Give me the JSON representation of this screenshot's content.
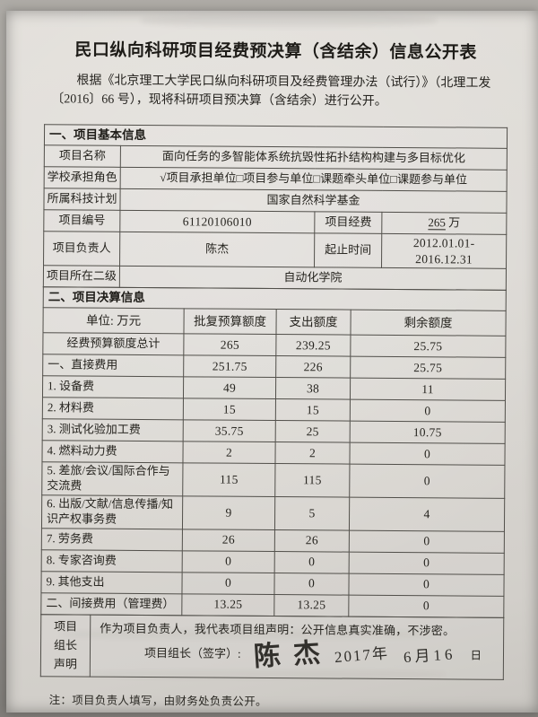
{
  "doc": {
    "title": "民口纵向科研项目经费预决算（含结余）信息公开表",
    "intro": "根据《北京理工大学民口纵向科研项目及经费管理办法（试行）》（北理工发〔2016〕66 号），现将科研项目预决算（含结余）进行公开。",
    "footnote": "注：项目负责人填写，由财务处负责公开。"
  },
  "basic_info": {
    "section_title": "一、项目基本信息",
    "project_name": {
      "label": "项目名称",
      "value": "面向任务的多智能体系统抗毁性拓扑结构构建与多目标优化"
    },
    "school_role": {
      "label": "学校承担角色",
      "value": "√项目承担单位□项目参与单位□课题牵头单位□课题参与单位"
    },
    "program": {
      "label": "所属科技计划",
      "value": "国家自然科学基金"
    },
    "project_no": {
      "label": "项目编号",
      "value": "61120106010"
    },
    "budget": {
      "label": "项目经费",
      "value": "265",
      "unit": "万"
    },
    "pi": {
      "label": "项目负责人",
      "value": "陈杰"
    },
    "period": {
      "label": "起止时间",
      "value": "2012.01.01- 2016.12.31"
    },
    "dept": {
      "label": "项目所在二级",
      "value": "自动化学院"
    }
  },
  "settlement": {
    "section_title": "二、项目决算信息",
    "columns": [
      "单位: 万元",
      "批复预算额度",
      "支出额度",
      "剩余额度"
    ],
    "rows": [
      {
        "label": "经费预算额度总计",
        "budget": "265",
        "spent": "239.25",
        "remain": "25.75",
        "label_align": "center"
      },
      {
        "label": "一、直接费用",
        "budget": "251.75",
        "spent": "226",
        "remain": "25.75"
      },
      {
        "label": "1. 设备费",
        "budget": "49",
        "spent": "38",
        "remain": "11"
      },
      {
        "label": "2. 材料费",
        "budget": "15",
        "spent": "15",
        "remain": "0"
      },
      {
        "label": "3. 测试化验加工费",
        "budget": "35.75",
        "spent": "25",
        "remain": "10.75"
      },
      {
        "label": "4. 燃料动力费",
        "budget": "2",
        "spent": "2",
        "remain": "0"
      },
      {
        "label": "5. 差旅/会议/国际合作与交流费",
        "budget": "115",
        "spent": "115",
        "remain": "0"
      },
      {
        "label": "6. 出版/文献/信息传播/知识产权事务费",
        "budget": "9",
        "spent": "5",
        "remain": "4"
      },
      {
        "label": "7. 劳务费",
        "budget": "26",
        "spent": "26",
        "remain": "0"
      },
      {
        "label": "8. 专家咨询费",
        "budget": "0",
        "spent": "0",
        "remain": "0"
      },
      {
        "label": "9. 其他支出",
        "budget": "0",
        "spent": "0",
        "remain": "0"
      },
      {
        "label": "二、间接费用（管理费）",
        "budget": "13.25",
        "spent": "13.25",
        "remain": "0"
      }
    ]
  },
  "declaration": {
    "row_label": "项目组长声明",
    "statement": "作为项目负责人，我代表项目组声明：公开信息真实准确，不涉密。",
    "sign_label": "项目组长（签字）:",
    "signature": "陈杰",
    "date_year": "2017年",
    "date_monthday": "6月16",
    "date_suffix": "日"
  }
}
